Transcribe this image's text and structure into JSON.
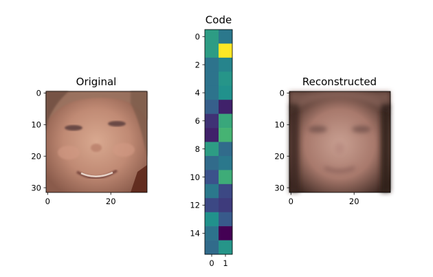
{
  "chart_data": [
    {
      "type": "heatmap",
      "title": "Original",
      "image_content": "face-photo",
      "x_ticks": [
        "0",
        "20"
      ],
      "y_ticks": [
        "0",
        "10",
        "20",
        "30"
      ],
      "xlim": [
        -0.5,
        31.5
      ],
      "ylim": [
        31.5,
        -0.5
      ]
    },
    {
      "type": "heatmap",
      "title": "Code",
      "colormap": "viridis",
      "x_ticks": [
        "0",
        "1"
      ],
      "y_ticks": [
        "0",
        "2",
        "4",
        "6",
        "8",
        "10",
        "12",
        "14"
      ],
      "xlim": [
        -0.5,
        1.5
      ],
      "ylim": [
        15.5,
        -0.5
      ],
      "values": [
        [
          0.55,
          0.4
        ],
        [
          0.55,
          1.0
        ],
        [
          0.38,
          0.45
        ],
        [
          0.38,
          0.52
        ],
        [
          0.38,
          0.5
        ],
        [
          0.3,
          0.1
        ],
        [
          0.15,
          0.6
        ],
        [
          0.1,
          0.65
        ],
        [
          0.55,
          0.35
        ],
        [
          0.35,
          0.4
        ],
        [
          0.25,
          0.62
        ],
        [
          0.4,
          0.22
        ],
        [
          0.22,
          0.18
        ],
        [
          0.5,
          0.28
        ],
        [
          0.38,
          0.0
        ],
        [
          0.35,
          0.52
        ]
      ]
    },
    {
      "type": "heatmap",
      "title": "Reconstructed",
      "image_content": "blurred-face",
      "x_ticks": [
        "0",
        "20"
      ],
      "y_ticks": [
        "0",
        "10",
        "20",
        "30"
      ],
      "xlim": [
        -0.5,
        31.5
      ],
      "ylim": [
        31.5,
        -0.5
      ]
    }
  ],
  "colors": {
    "skin_original": "#c8927a",
    "skin_reconstructed": "#b68a7c",
    "background_dark": "#2a1a16"
  }
}
